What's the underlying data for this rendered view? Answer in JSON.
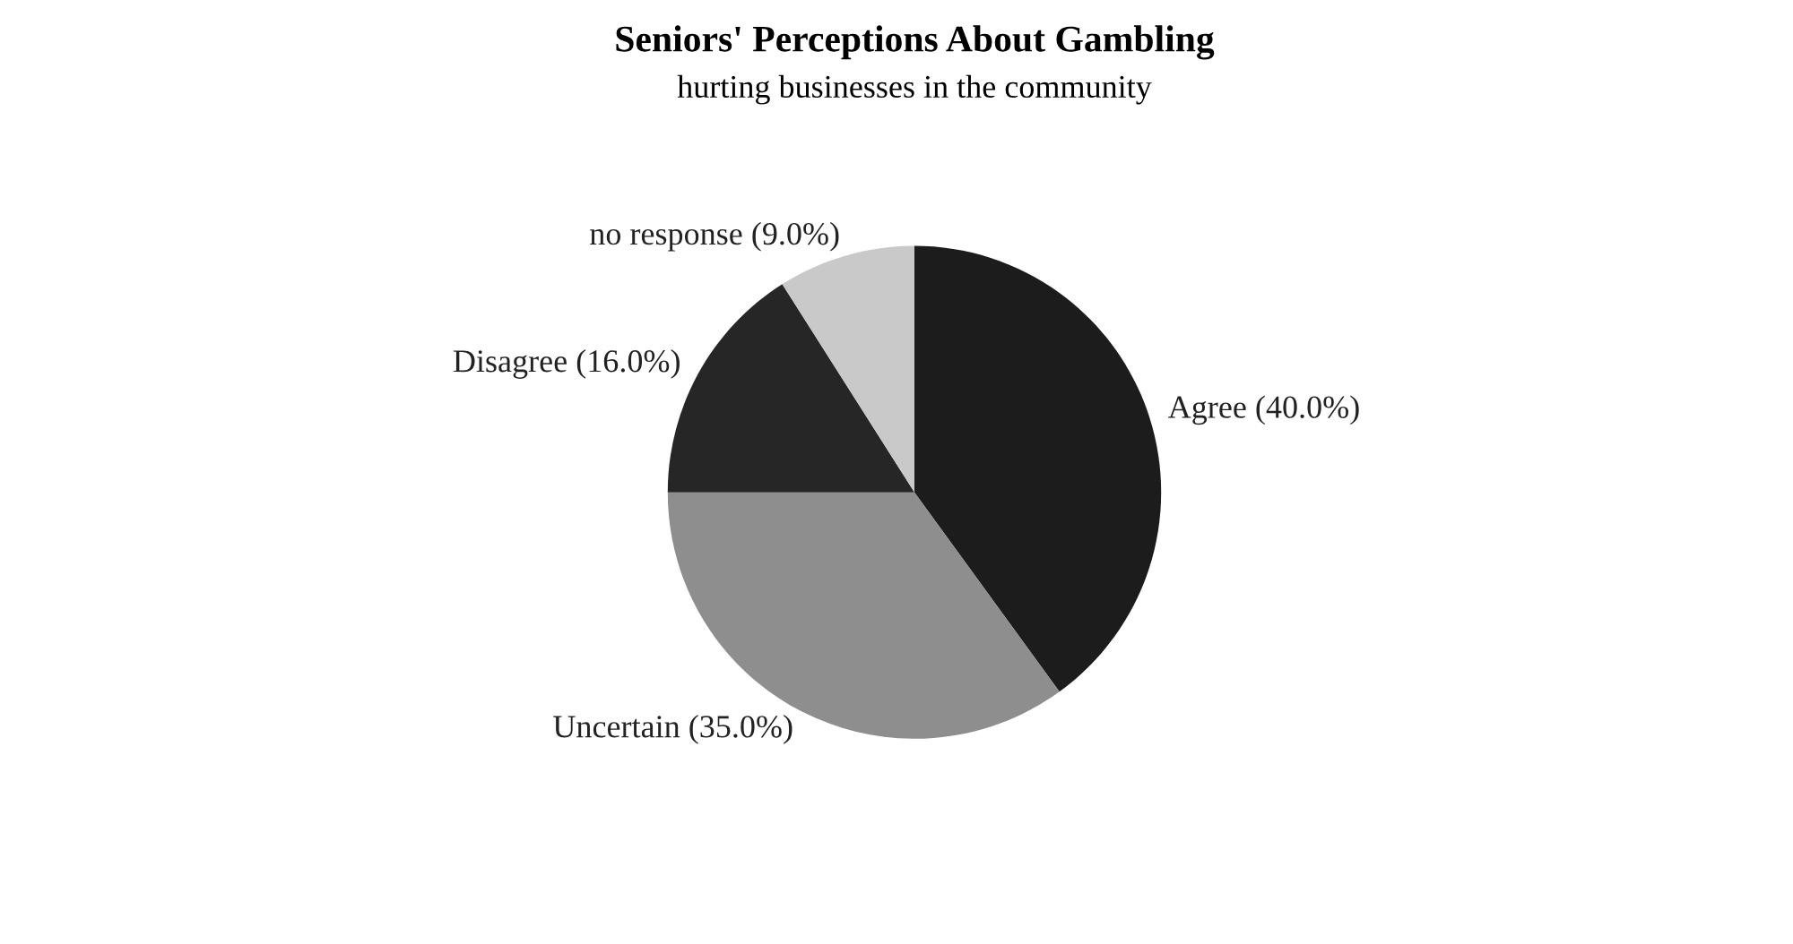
{
  "chart_data": {
    "type": "pie",
    "title": "Seniors' Perceptions About Gambling",
    "subtitle": "hurting businesses in the community",
    "categories": [
      "Agree (40.0%)",
      "Uncertain (35.0%)",
      "Disagree (16.0%)",
      "no response (9.0%)"
    ],
    "values": [
      40,
      35,
      16,
      9
    ],
    "colors": [
      "#1c1c1c",
      "#8e8e8e",
      "#262626",
      "#c9c9c9"
    ],
    "legend": false
  }
}
